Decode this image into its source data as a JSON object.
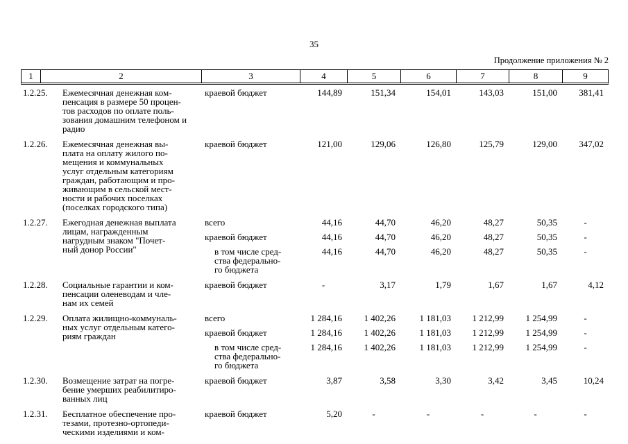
{
  "page": {
    "page_number": "35",
    "continuation_note": "Продолжение приложения № 2"
  },
  "table": {
    "column_numbers": [
      "1",
      "2",
      "3",
      "4",
      "5",
      "6",
      "7",
      "8",
      "9"
    ],
    "rows": [
      {
        "num": "1.2.25.",
        "name": "Ежемесячная денежная ком-\nпенсация в размере 50 процен-\nтов расходов по оплате поль-\nзования домашним телефоном и\nрадио",
        "subrows": [
          {
            "source": "краевой бюджет",
            "indent": false,
            "values": [
              "144,89",
              "151,34",
              "154,01",
              "143,03",
              "151,00",
              "381,41"
            ]
          }
        ]
      },
      {
        "num": "1.2.26.",
        "name": "Ежемесячная денежная вы-\nплата на оплату жилого по-\nмещения и коммунальных\nуслуг отдельным категориям\nграждан, работающим и про-\nживающим в сельской мест-\nности и рабочих поселках\n(поселках городского типа)",
        "subrows": [
          {
            "source": "краевой бюджет",
            "indent": false,
            "values": [
              "121,00",
              "129,06",
              "126,80",
              "125,79",
              "129,00",
              "347,02"
            ]
          }
        ]
      },
      {
        "num": "1.2.27.",
        "name": "Ежегодная денежная выплата\nлицам, награжденным\nнагрудным знаком \"Почет-\nный донор России\"",
        "subrows": [
          {
            "source": "всего",
            "indent": false,
            "values": [
              "44,16",
              "44,70",
              "46,20",
              "48,27",
              "50,35",
              "-"
            ]
          },
          {
            "source": "краевой бюджет",
            "indent": false,
            "values": [
              "44,16",
              "44,70",
              "46,20",
              "48,27",
              "50,35",
              "-"
            ]
          },
          {
            "source": "в том числе сред-\nства федерально-\nго бюджета",
            "indent": true,
            "values": [
              "44,16",
              "44,70",
              "46,20",
              "48,27",
              "50,35",
              "-"
            ]
          }
        ]
      },
      {
        "num": "1.2.28.",
        "name": "Социальные гарантии и ком-\nпенсации оленеводам и чле-\nнам их семей",
        "subrows": [
          {
            "source": "краевой бюджет",
            "indent": false,
            "values": [
              "-",
              "3,17",
              "1,79",
              "1,67",
              "1,67",
              "4,12"
            ]
          }
        ]
      },
      {
        "num": "1.2.29.",
        "name": "Оплата жилищно-коммуналь-\nных услуг отдельным катего-\nриям граждан",
        "subrows": [
          {
            "source": "всего",
            "indent": false,
            "values": [
              "1 284,16",
              "1 402,26",
              "1 181,03",
              "1 212,99",
              "1 254,99",
              "-"
            ]
          },
          {
            "source": "краевой бюджет",
            "indent": false,
            "values": [
              "1 284,16",
              "1 402,26",
              "1 181,03",
              "1 212,99",
              "1 254,99",
              "-"
            ]
          },
          {
            "source": "в том числе сред-\nства федерально-\nго бюджета",
            "indent": true,
            "values": [
              "1 284,16",
              "1 402,26",
              "1 181,03",
              "1 212,99",
              "1 254,99",
              "-"
            ]
          }
        ]
      },
      {
        "num": "1.2.30.",
        "name": "Возмещение затрат на погре-\nбение умерших реабилитиро-\nванных лиц",
        "subrows": [
          {
            "source": "краевой бюджет",
            "indent": false,
            "values": [
              "3,87",
              "3,58",
              "3,30",
              "3,42",
              "3,45",
              "10,24"
            ]
          }
        ]
      },
      {
        "num": "1.2.31.",
        "name": "Бесплатное обеспечение про-\nтезами, протезно-ортопеди-\nческими изделиями и ком-",
        "subrows": [
          {
            "source": "краевой бюджет",
            "indent": false,
            "values": [
              "5,20",
              "-",
              "-",
              "-",
              "-",
              "-"
            ]
          }
        ]
      }
    ]
  }
}
